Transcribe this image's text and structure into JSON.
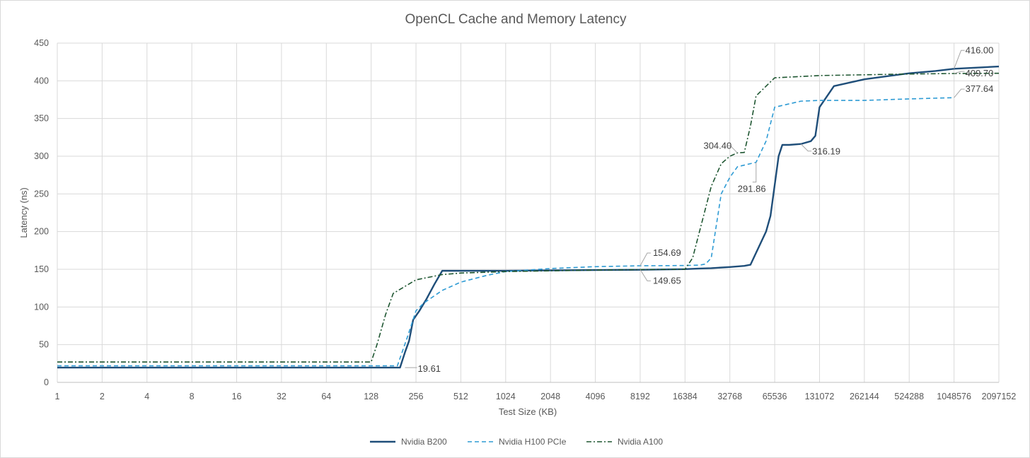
{
  "chart_data": {
    "type": "line",
    "title": "OpenCL Cache and Memory Latency",
    "xlabel": "Test Size (KB)",
    "ylabel": "Latency (ns)",
    "x_scale": "log2",
    "xlim": [
      1,
      2097152
    ],
    "ylim": [
      0,
      450
    ],
    "x_ticks": [
      1,
      2,
      4,
      8,
      16,
      32,
      64,
      128,
      256,
      512,
      1024,
      2048,
      4096,
      8192,
      16384,
      32768,
      65536,
      131072,
      262144,
      524288,
      1048576,
      2097152
    ],
    "x_tick_labels": [
      "1",
      "2",
      "4",
      "8",
      "16",
      "32",
      "64",
      "128",
      "256",
      "512",
      "1024",
      "2048",
      "4096",
      "8192",
      "16384",
      "32768",
      "65536",
      "131072",
      "262144",
      "524288",
      "1048576",
      "2097152"
    ],
    "y_ticks": [
      0,
      50,
      100,
      150,
      200,
      250,
      300,
      350,
      400,
      450
    ],
    "y_tick_labels": [
      "0",
      "50",
      "100",
      "150",
      "200",
      "250",
      "300",
      "350",
      "400",
      "450"
    ],
    "grid": true,
    "legend_position": "bottom",
    "series": [
      {
        "name": "Nvidia B200",
        "color": "#1f4e79",
        "dash": "solid",
        "points": [
          [
            1,
            19.61
          ],
          [
            2,
            19.61
          ],
          [
            4,
            19.61
          ],
          [
            8,
            19.61
          ],
          [
            16,
            19.61
          ],
          [
            32,
            19.61
          ],
          [
            64,
            19.61
          ],
          [
            128,
            19.61
          ],
          [
            160,
            19.61
          ],
          [
            200,
            19.61
          ],
          [
            216,
            40
          ],
          [
            230,
            55
          ],
          [
            245,
            83
          ],
          [
            270,
            95
          ],
          [
            300,
            110
          ],
          [
            340,
            130
          ],
          [
            384,
            148
          ],
          [
            512,
            148
          ],
          [
            1024,
            148
          ],
          [
            2048,
            148.5
          ],
          [
            4096,
            149
          ],
          [
            8192,
            149.4
          ],
          [
            16384,
            150.2
          ],
          [
            20480,
            151
          ],
          [
            24576,
            151.5
          ],
          [
            32768,
            153
          ],
          [
            40960,
            154.5
          ],
          [
            45056,
            156
          ],
          [
            57344,
            200
          ],
          [
            61440,
            221
          ],
          [
            69632,
            300
          ],
          [
            73728,
            315
          ],
          [
            81920,
            315
          ],
          [
            98304,
            316.19
          ],
          [
            114688,
            320
          ],
          [
            122880,
            327
          ],
          [
            131072,
            365
          ],
          [
            163840,
            393
          ],
          [
            262144,
            402
          ],
          [
            524288,
            410
          ],
          [
            786432,
            413
          ],
          [
            1048576,
            416
          ],
          [
            2097152,
            419
          ]
        ]
      },
      {
        "name": "Nvidia H100 PCIe",
        "color": "#2e9bd4",
        "dash": "dashed",
        "points": [
          [
            1,
            22
          ],
          [
            2,
            22
          ],
          [
            4,
            22
          ],
          [
            8,
            22
          ],
          [
            16,
            22
          ],
          [
            32,
            22
          ],
          [
            64,
            22
          ],
          [
            128,
            22
          ],
          [
            180,
            22
          ],
          [
            192,
            22
          ],
          [
            224,
            60
          ],
          [
            256,
            95
          ],
          [
            288,
            105
          ],
          [
            384,
            122
          ],
          [
            512,
            133
          ],
          [
            768,
            142
          ],
          [
            1024,
            147
          ],
          [
            2048,
            151
          ],
          [
            4096,
            153.5
          ],
          [
            8192,
            154.69
          ],
          [
            16384,
            155
          ],
          [
            20480,
            155.5
          ],
          [
            22528,
            157
          ],
          [
            24576,
            165
          ],
          [
            28672,
            250
          ],
          [
            32768,
            272
          ],
          [
            36864,
            286
          ],
          [
            49152,
            291.86
          ],
          [
            57344,
            320
          ],
          [
            65536,
            365
          ],
          [
            98304,
            373
          ],
          [
            131072,
            374
          ],
          [
            262144,
            374
          ],
          [
            524288,
            376
          ],
          [
            1048576,
            377.64
          ]
        ]
      },
      {
        "name": "Nvidia A100",
        "color": "#1e5631",
        "dash": "dashdot",
        "points": [
          [
            1,
            27
          ],
          [
            2,
            27
          ],
          [
            4,
            27
          ],
          [
            8,
            27
          ],
          [
            16,
            27
          ],
          [
            32,
            27
          ],
          [
            64,
            27
          ],
          [
            128,
            27
          ],
          [
            140,
            50
          ],
          [
            160,
            90
          ],
          [
            180,
            118
          ],
          [
            256,
            136
          ],
          [
            384,
            143
          ],
          [
            512,
            145
          ],
          [
            1024,
            147
          ],
          [
            2048,
            148
          ],
          [
            4096,
            149
          ],
          [
            8192,
            149.65
          ],
          [
            16384,
            150
          ],
          [
            18432,
            165
          ],
          [
            24576,
            260
          ],
          [
            28672,
            290
          ],
          [
            32768,
            300
          ],
          [
            36864,
            304.4
          ],
          [
            40960,
            305
          ],
          [
            45056,
            340
          ],
          [
            49152,
            380
          ],
          [
            65536,
            404
          ],
          [
            131072,
            407
          ],
          [
            262144,
            408
          ],
          [
            524288,
            409
          ],
          [
            1048576,
            409.7
          ],
          [
            2097152,
            410
          ]
        ]
      }
    ],
    "annotations": [
      {
        "text": "19.61",
        "series": "Nvidia B200",
        "x": 216,
        "y": 19.61
      },
      {
        "text": "154.69",
        "series": "Nvidia H100 PCIe",
        "x": 8192,
        "y": 154.69
      },
      {
        "text": "149.65",
        "series": "Nvidia A100",
        "x": 8192,
        "y": 149.65
      },
      {
        "text": "304.40",
        "series": "Nvidia A100",
        "x": 36864,
        "y": 304.4
      },
      {
        "text": "291.86",
        "series": "Nvidia H100 PCIe",
        "x": 49152,
        "y": 291.86
      },
      {
        "text": "316.19",
        "series": "Nvidia B200",
        "x": 98304,
        "y": 316.19
      },
      {
        "text": "416.00",
        "series": "Nvidia B200",
        "x": 1048576,
        "y": 416
      },
      {
        "text": "409.70",
        "series": "Nvidia A100",
        "x": 1048576,
        "y": 409.7
      },
      {
        "text": "377.64",
        "series": "Nvidia H100 PCIe",
        "x": 1048576,
        "y": 377.64
      }
    ]
  }
}
